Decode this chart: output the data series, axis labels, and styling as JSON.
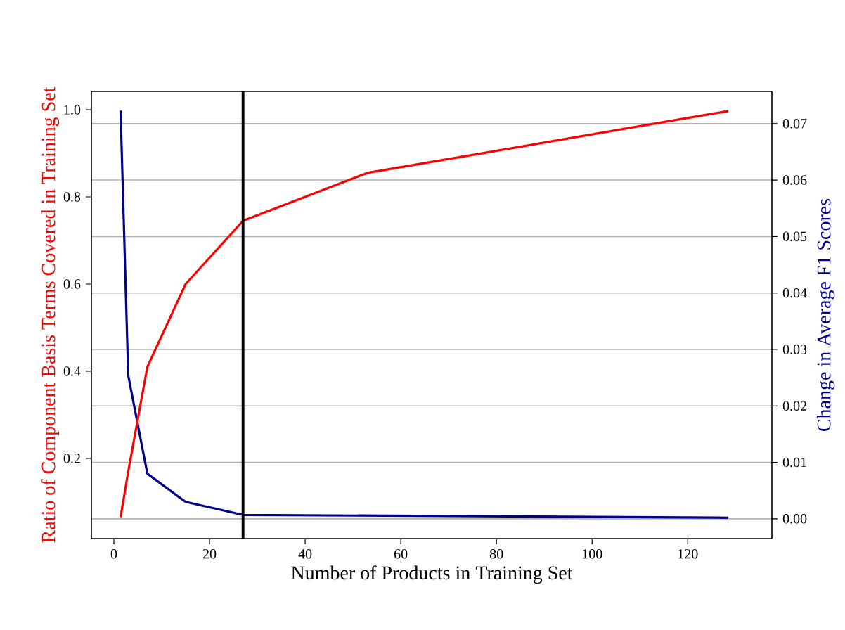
{
  "chart_data": {
    "type": "line",
    "xlabel": "Number of Products in Training Set",
    "ylabel": "Ratio of Component Basis Terms Covered in Training Set",
    "y2label": "Change in Average F1 Scores",
    "xlim": [
      -4.7,
      137.6
    ],
    "xticks": [
      0,
      20,
      40,
      60,
      80,
      100,
      120
    ],
    "ylim": [
      0.016,
      1.042
    ],
    "yticks": [
      {
        "value": 0.2,
        "label": "0.2"
      },
      {
        "value": 0.4,
        "label": "0.4"
      },
      {
        "value": 0.6,
        "label": "0.6"
      },
      {
        "value": 0.8,
        "label": "0.8"
      },
      {
        "value": 1.0,
        "label": "1.0"
      }
    ],
    "y2lim": [
      -0.0035,
      0.0757
    ],
    "y2ticks": [
      {
        "value": 0,
        "label": "0.00"
      },
      {
        "value": 0.01,
        "label": "0.01"
      },
      {
        "value": 0.02,
        "label": "0.02"
      },
      {
        "value": 0.03,
        "label": "0.03"
      },
      {
        "value": 0.04,
        "label": "0.04"
      },
      {
        "value": 0.05,
        "label": "0.05"
      },
      {
        "value": 0.06,
        "label": "0.06"
      },
      {
        "value": 0.07,
        "label": "0.07"
      }
    ],
    "grid": "y2",
    "series": [
      {
        "color": "#ff0000",
        "x": [
          1.4,
          3,
          7,
          15,
          27,
          53,
          128.5
        ],
        "values": [
          0.065,
          0.17,
          0.41,
          0.6,
          0.745,
          0.855,
          0.997
        ]
      },
      {
        "color": "#00008b",
        "axis": "y2",
        "x": [
          1.4,
          3,
          7,
          15,
          27,
          128.5
        ],
        "values": [
          0.0723,
          0.0254,
          0.008,
          0.003,
          0.0007,
          0.0002
        ]
      }
    ],
    "ref_lines": [
      {
        "axis": "x",
        "value": 27,
        "color": "#000000"
      }
    ]
  }
}
